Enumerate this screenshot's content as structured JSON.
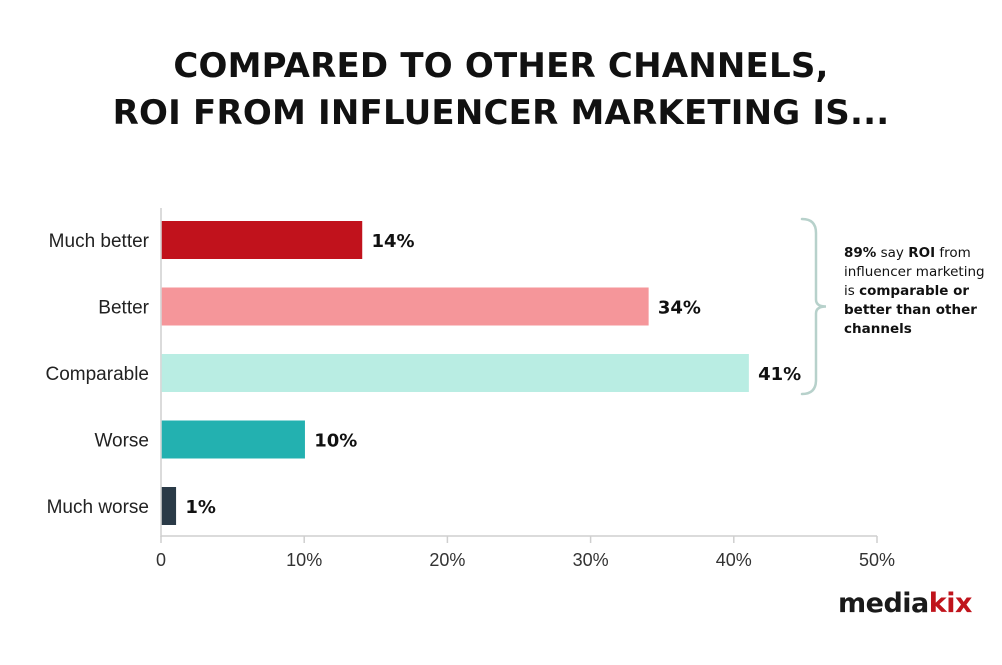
{
  "chart_data": {
    "type": "bar",
    "orientation": "horizontal",
    "title": [
      "COMPARED TO OTHER CHANNELS,",
      "ROI FROM INFLUENCER MARKETING IS..."
    ],
    "categories": [
      "Much better",
      "Better",
      "Comparable",
      "Worse",
      "Much worse"
    ],
    "values": [
      14,
      34,
      41,
      10,
      1
    ],
    "value_labels": [
      "14%",
      "34%",
      "41%",
      "10%",
      "1%"
    ],
    "bar_colors": [
      "#c1121c",
      "#f5969a",
      "#b9ede3",
      "#23b1b0",
      "#2a3a47"
    ],
    "xlim": [
      0,
      50
    ],
    "xticks": [
      0,
      10,
      20,
      30,
      40,
      50
    ],
    "xtick_labels": [
      "0",
      "10%",
      "20%",
      "30%",
      "40%",
      "50%"
    ],
    "xlabel": "",
    "ylabel": "",
    "grid": false,
    "legend": "none",
    "annotation": {
      "brackets": [
        "Much better",
        "Better",
        "Comparable"
      ],
      "parts": [
        {
          "text": "89%",
          "bold": true
        },
        {
          "text": " say ",
          "bold": false
        },
        {
          "text": "ROI",
          "bold": true
        },
        {
          "text": " from influencer marketing is ",
          "bold": false
        },
        {
          "text": "comparable or better than other channels",
          "bold": true
        }
      ]
    }
  },
  "brand": {
    "logo_parts": [
      "media",
      "kix"
    ],
    "accent_color": "#c0141c"
  }
}
